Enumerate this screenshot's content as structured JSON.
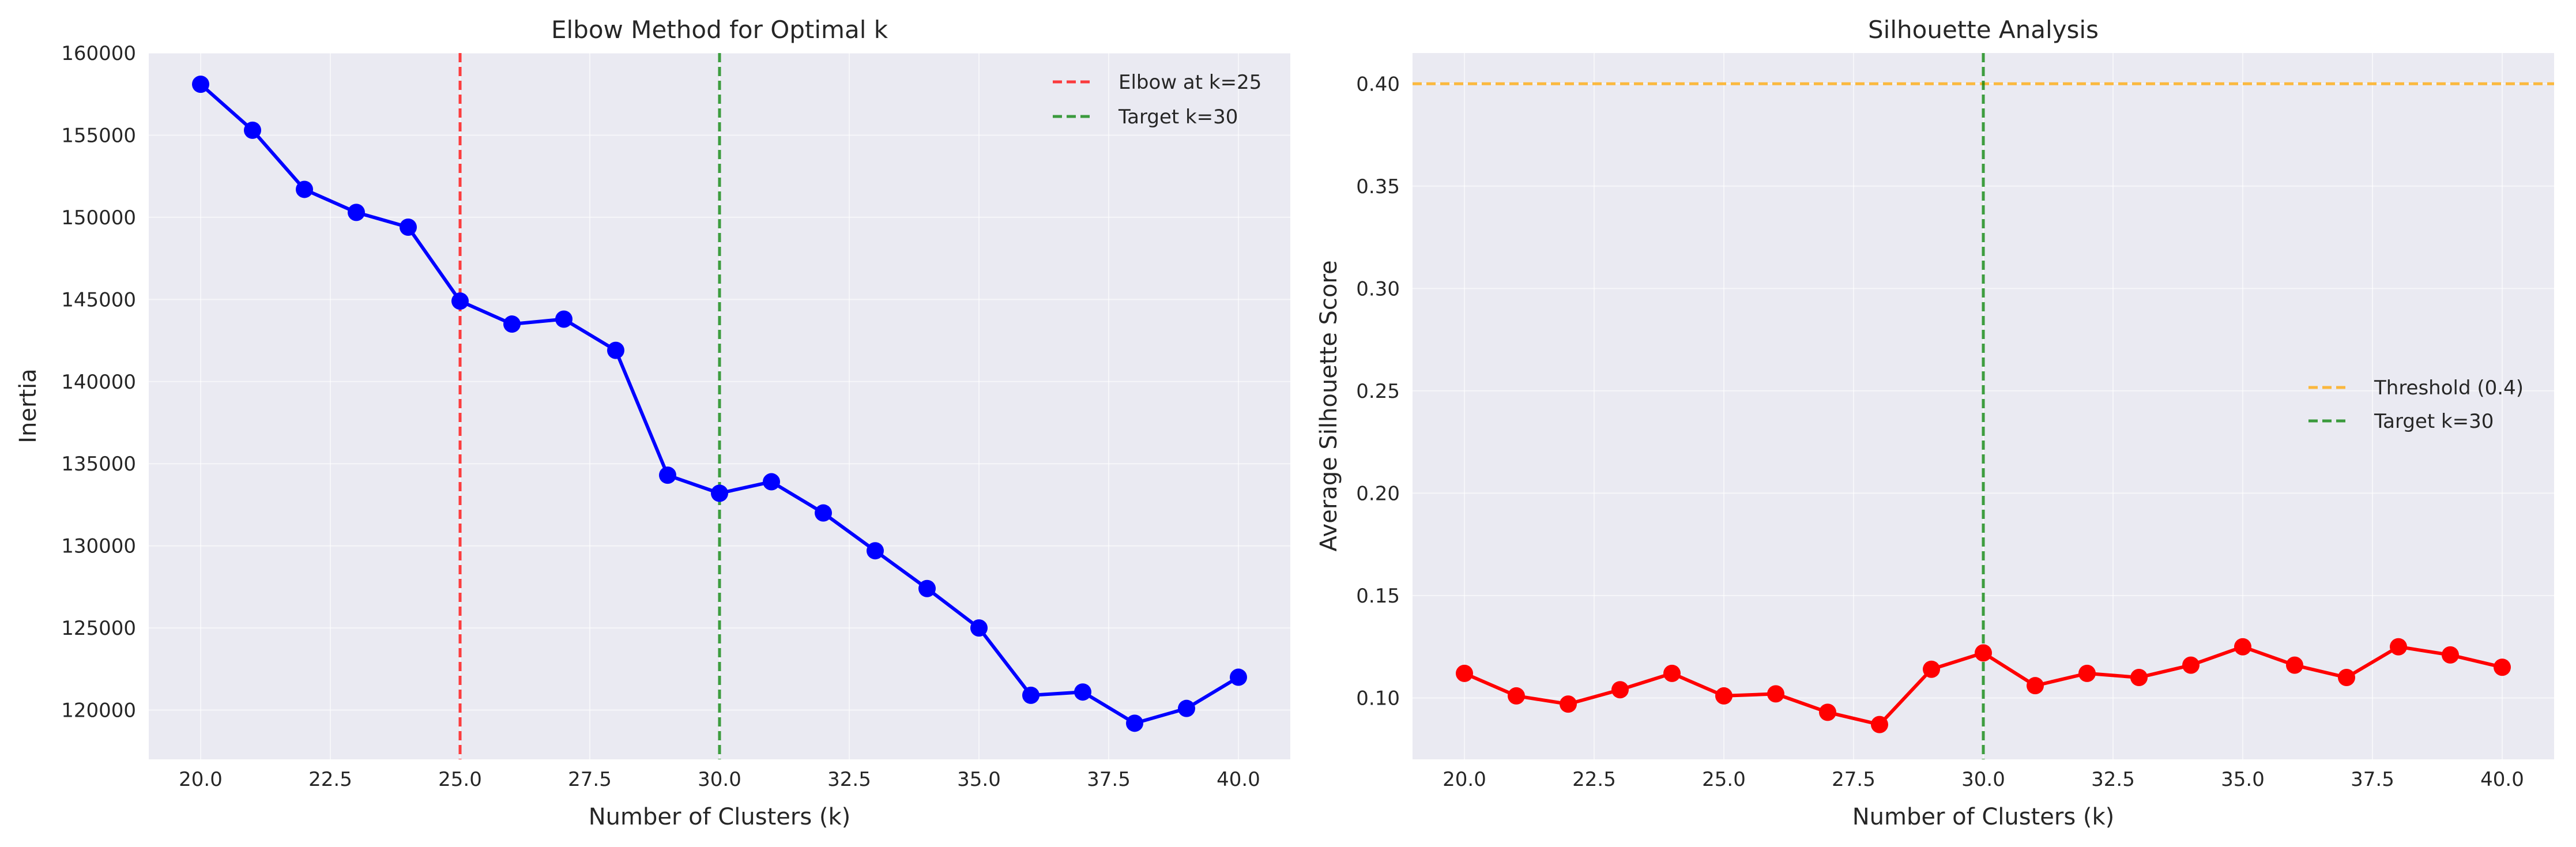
{
  "chart_data": [
    {
      "type": "line",
      "title": "Elbow Method for Optimal k",
      "xlabel": "Number of Clusters (k)",
      "ylabel": "Inertia",
      "xlim": [
        19.0,
        41.0
      ],
      "ylim": [
        117000,
        160000
      ],
      "xticks": [
        20.0,
        22.5,
        25.0,
        27.5,
        30.0,
        32.5,
        35.0,
        37.5,
        40.0
      ],
      "xtick_labels": [
        "20.0",
        "22.5",
        "25.0",
        "27.5",
        "30.0",
        "32.5",
        "35.0",
        "37.5",
        "40.0"
      ],
      "yticks": [
        120000,
        125000,
        130000,
        135000,
        140000,
        145000,
        150000,
        155000,
        160000
      ],
      "ytick_labels": [
        "120000",
        "125000",
        "130000",
        "135000",
        "140000",
        "145000",
        "150000",
        "155000",
        "160000"
      ],
      "grid": true,
      "legend_position": "top-right",
      "series": [
        {
          "name": "",
          "color": "#0000ff",
          "marker": "circle",
          "x": [
            20,
            21,
            22,
            23,
            24,
            25,
            26,
            27,
            28,
            29,
            30,
            31,
            32,
            33,
            34,
            35,
            36,
            37,
            38,
            39,
            40
          ],
          "y": [
            158100,
            155300,
            151700,
            150300,
            149400,
            144900,
            143500,
            143800,
            141900,
            134300,
            133200,
            133900,
            132000,
            129700,
            127400,
            125000,
            120900,
            121100,
            119200,
            120100,
            122000
          ]
        }
      ],
      "vlines": [
        {
          "label": "Elbow at k=25",
          "x": 25,
          "color": "#ff0000",
          "style": "dashed"
        },
        {
          "label": "Target k=30",
          "x": 30,
          "color": "#008000",
          "style": "dashed"
        }
      ]
    },
    {
      "type": "line",
      "title": "Silhouette Analysis",
      "xlabel": "Number of Clusters (k)",
      "ylabel": "Average Silhouette Score",
      "xlim": [
        19.0,
        41.0
      ],
      "ylim": [
        0.07,
        0.415
      ],
      "xticks": [
        20.0,
        22.5,
        25.0,
        27.5,
        30.0,
        32.5,
        35.0,
        37.5,
        40.0
      ],
      "xtick_labels": [
        "20.0",
        "22.5",
        "25.0",
        "27.5",
        "30.0",
        "32.5",
        "35.0",
        "37.5",
        "40.0"
      ],
      "yticks": [
        0.1,
        0.15,
        0.2,
        0.25,
        0.3,
        0.35,
        0.4
      ],
      "ytick_labels": [
        "0.10",
        "0.15",
        "0.20",
        "0.25",
        "0.30",
        "0.35",
        "0.40"
      ],
      "grid": true,
      "legend_position": "center-right",
      "series": [
        {
          "name": "",
          "color": "#ff0000",
          "marker": "circle",
          "x": [
            20,
            21,
            22,
            23,
            24,
            25,
            26,
            27,
            28,
            29,
            30,
            31,
            32,
            33,
            34,
            35,
            36,
            37,
            38,
            39,
            40
          ],
          "y": [
            0.112,
            0.101,
            0.097,
            0.104,
            0.112,
            0.101,
            0.102,
            0.093,
            0.087,
            0.114,
            0.122,
            0.106,
            0.112,
            0.11,
            0.116,
            0.125,
            0.116,
            0.11,
            0.125,
            0.121,
            0.115
          ]
        }
      ],
      "hlines": [
        {
          "label": "Threshold (0.4)",
          "y": 0.4,
          "color": "#ffa500",
          "style": "dashed"
        }
      ],
      "vlines": [
        {
          "label": "Target k=30",
          "x": 30,
          "color": "#008000",
          "style": "dashed"
        }
      ]
    }
  ]
}
